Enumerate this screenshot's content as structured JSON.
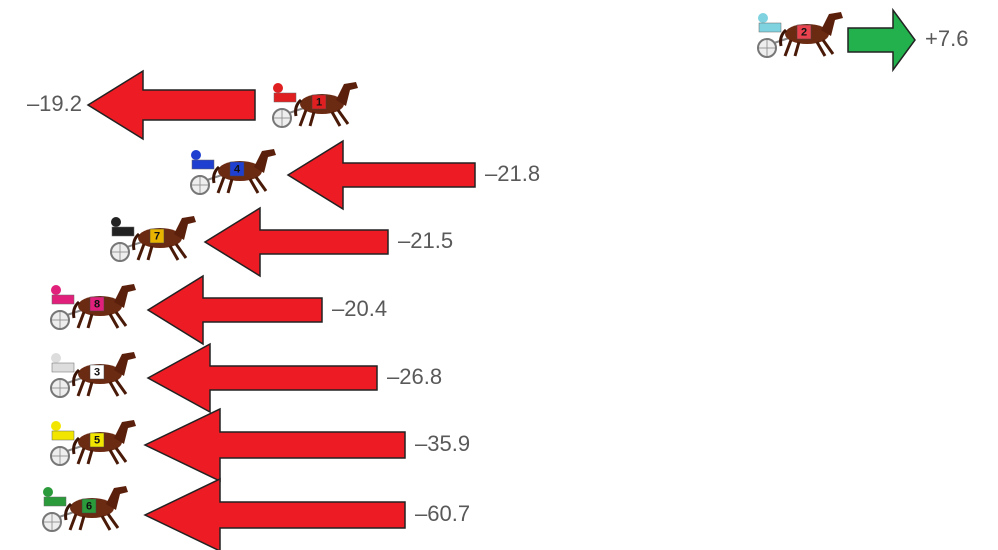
{
  "rows": [
    {
      "number": "2",
      "silk_color": "#7fd3e0",
      "saddle_color": "#e8434e",
      "arrow_color": "#22b14c",
      "label": "+7.6"
    },
    {
      "number": "1",
      "silk_color": "#e02020",
      "saddle_color": "#e02020",
      "arrow_color": "#ed1c24",
      "label": "–19.2"
    },
    {
      "number": "4",
      "silk_color": "#1f3fd0",
      "saddle_color": "#1f3fd0",
      "arrow_color": "#ed1c24",
      "label": "–21.8"
    },
    {
      "number": "7",
      "silk_color": "#222222",
      "saddle_color": "#e8b400",
      "arrow_color": "#ed1c24",
      "label": "–21.5"
    },
    {
      "number": "8",
      "silk_color": "#e0207a",
      "saddle_color": "#e0207a",
      "arrow_color": "#ed1c24",
      "label": "–20.4"
    },
    {
      "number": "3",
      "silk_color": "#dddddd",
      "saddle_color": "#ffffff",
      "arrow_color": "#ed1c24",
      "label": "–26.8"
    },
    {
      "number": "5",
      "silk_color": "#f2e600",
      "saddle_color": "#f2e600",
      "arrow_color": "#ed1c24",
      "label": "–35.9"
    },
    {
      "number": "6",
      "silk_color": "#2a9a3a",
      "saddle_color": "#2a9a3a",
      "arrow_color": "#ed1c24",
      "label": "–60.7"
    }
  ]
}
